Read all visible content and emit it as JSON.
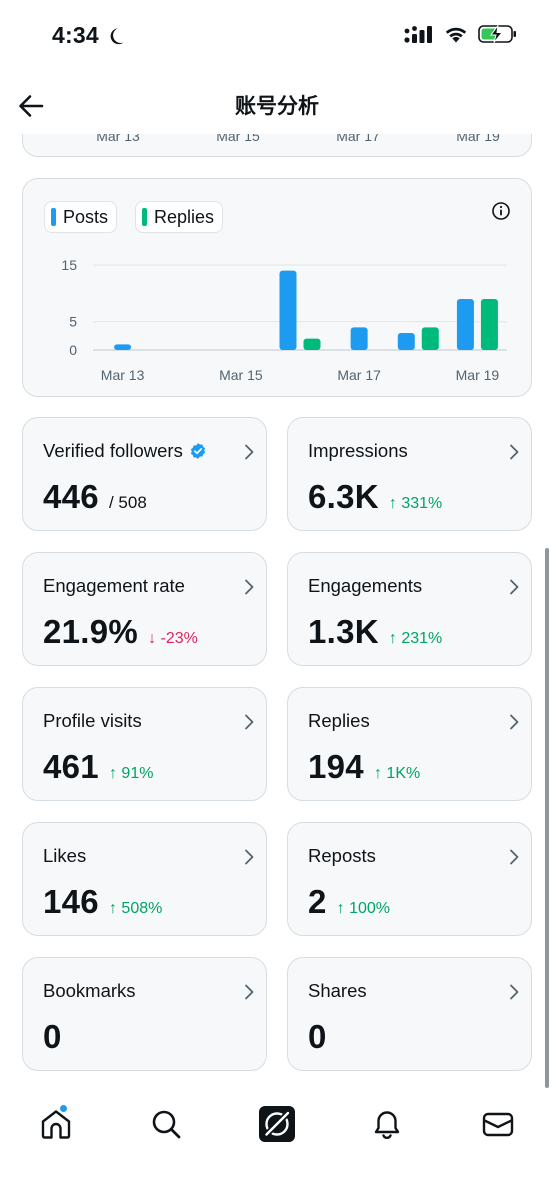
{
  "status_bar": {
    "time": "4:34"
  },
  "header": {
    "title": "账号分析"
  },
  "previous_chart": {
    "x_ticks": [
      "Mar 13",
      "Mar 15",
      "Mar 17",
      "Mar 19"
    ]
  },
  "chart": {
    "legend": [
      {
        "label": "Posts",
        "color": "#1d9bf0"
      },
      {
        "label": "Replies",
        "color": "#00ba7c"
      }
    ]
  },
  "chart_data": {
    "type": "bar",
    "categories": [
      "Mar 13",
      "Mar 14",
      "Mar 15",
      "Mar 16",
      "Mar 17",
      "Mar 18",
      "Mar 19"
    ],
    "series": [
      {
        "name": "Posts",
        "color": "#1d9bf0",
        "values": [
          1,
          0,
          0,
          14,
          4,
          3,
          9
        ]
      },
      {
        "name": "Replies",
        "color": "#00ba7c",
        "values": [
          0,
          0,
          0,
          2,
          0,
          4,
          9
        ]
      }
    ],
    "y_ticks": [
      0,
      5,
      15
    ],
    "x_tick_labels": [
      "Mar 13",
      "Mar 15",
      "Mar 17",
      "Mar 19"
    ],
    "ylim": [
      0,
      15
    ],
    "grid": true,
    "legend_position": "top-left"
  },
  "metrics": [
    {
      "label": "Verified followers",
      "value": "446",
      "extra": "/ 508",
      "change": "",
      "direction": "none",
      "verified_badge": true
    },
    {
      "label": "Impressions",
      "value": "6.3K",
      "extra": "",
      "change": "331%",
      "direction": "up"
    },
    {
      "label": "Engagement rate",
      "value": "21.9%",
      "extra": "",
      "change": "-23%",
      "direction": "down"
    },
    {
      "label": "Engagements",
      "value": "1.3K",
      "extra": "",
      "change": "231%",
      "direction": "up"
    },
    {
      "label": "Profile visits",
      "value": "461",
      "extra": "",
      "change": "91%",
      "direction": "up"
    },
    {
      "label": "Replies",
      "value": "194",
      "extra": "",
      "change": "1K%",
      "direction": "up"
    },
    {
      "label": "Likes",
      "value": "146",
      "extra": "",
      "change": "508%",
      "direction": "up"
    },
    {
      "label": "Reposts",
      "value": "2",
      "extra": "",
      "change": "100%",
      "direction": "up"
    },
    {
      "label": "Bookmarks",
      "value": "0",
      "extra": "",
      "change": "",
      "direction": "none"
    },
    {
      "label": "Shares",
      "value": "0",
      "extra": "",
      "change": "",
      "direction": "none"
    }
  ],
  "tabbar": {
    "items": [
      {
        "name": "home-icon",
        "has_notification": true
      },
      {
        "name": "search-icon"
      },
      {
        "name": "grok-icon"
      },
      {
        "name": "bell-icon"
      },
      {
        "name": "mail-icon"
      }
    ]
  }
}
